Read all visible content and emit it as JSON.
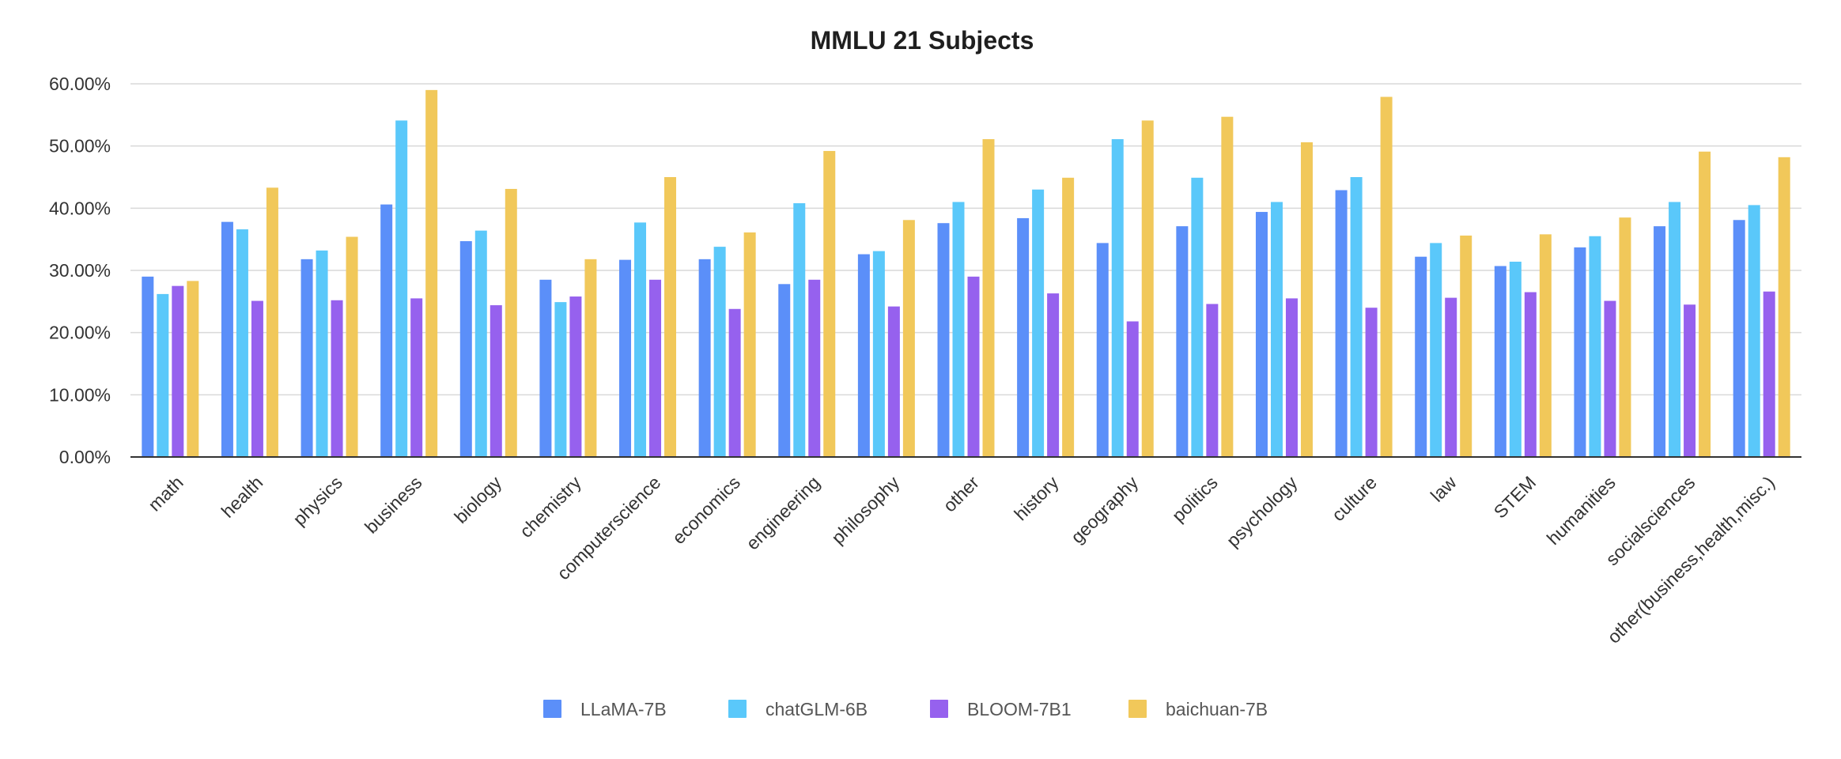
{
  "chart_data": {
    "type": "bar",
    "title": "MMLU 21 Subjects",
    "xlabel": "",
    "ylabel": "",
    "ylim": [
      0,
      0.6
    ],
    "yticks": [
      0,
      0.1,
      0.2,
      0.3,
      0.4,
      0.5,
      0.6
    ],
    "ytick_labels": [
      "0.00%",
      "10.00%",
      "20.00%",
      "30.00%",
      "40.00%",
      "50.00%",
      "60.00%"
    ],
    "grid": true,
    "legend_position": "bottom-center",
    "categories": [
      "math",
      "health",
      "physics",
      "business",
      "biology",
      "chemistry",
      "computerscience",
      "economics",
      "engineering",
      "philosophy",
      "other",
      "history",
      "geography",
      "politics",
      "psychology",
      "culture",
      "law",
      "STEM",
      "humanities",
      "socialsciences",
      "other(business,health,misc.)"
    ],
    "series": [
      {
        "name": "LLaMA-7B",
        "color": "#5b8ff9",
        "values": [
          0.29,
          0.378,
          0.318,
          0.406,
          0.347,
          0.285,
          0.317,
          0.318,
          0.278,
          0.326,
          0.376,
          0.384,
          0.344,
          0.371,
          0.394,
          0.429,
          0.322,
          0.307,
          0.337,
          0.371,
          0.381
        ]
      },
      {
        "name": "chatGLM-6B",
        "color": "#5ac8fa",
        "values": [
          0.262,
          0.366,
          0.332,
          0.541,
          0.364,
          0.249,
          0.377,
          0.338,
          0.408,
          0.331,
          0.41,
          0.43,
          0.511,
          0.449,
          0.41,
          0.45,
          0.344,
          0.314,
          0.355,
          0.41,
          0.405
        ]
      },
      {
        "name": "BLOOM-7B1",
        "color": "#9661ee",
        "values": [
          0.275,
          0.251,
          0.252,
          0.255,
          0.244,
          0.258,
          0.285,
          0.238,
          0.285,
          0.242,
          0.29,
          0.263,
          0.218,
          0.246,
          0.255,
          0.24,
          0.256,
          0.265,
          0.251,
          0.245,
          0.266
        ]
      },
      {
        "name": "baichuan-7B",
        "color": "#f1c85a",
        "values": [
          0.283,
          0.433,
          0.354,
          0.59,
          0.431,
          0.318,
          0.45,
          0.361,
          0.492,
          0.381,
          0.511,
          0.449,
          0.541,
          0.547,
          0.506,
          0.579,
          0.356,
          0.358,
          0.385,
          0.491,
          0.482
        ]
      }
    ]
  }
}
